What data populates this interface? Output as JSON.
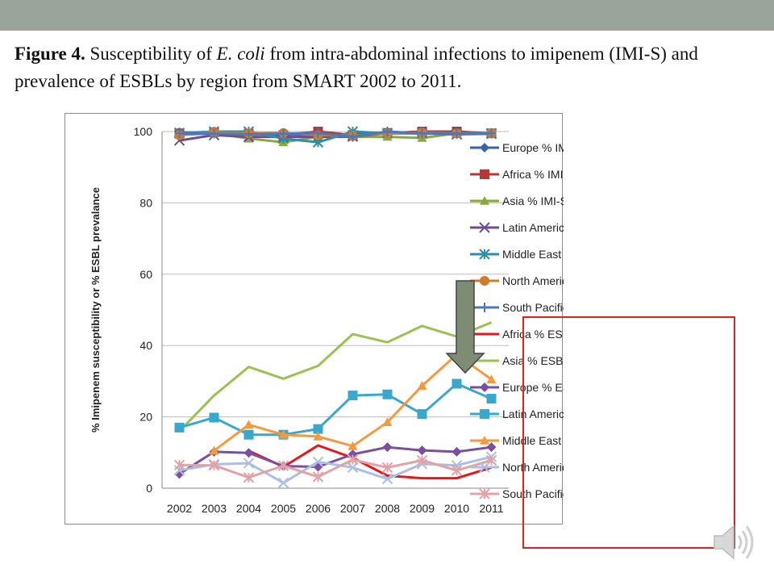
{
  "caption": {
    "label": "Figure 4.",
    "text_before_italic": " Susceptibility of ",
    "italic": "E. coli",
    "text_after_italic": " from intra-abdominal infections to imipenem (IMI-S) and prevalence of ESBLs by region from SMART 2002 to 2011."
  },
  "colors": {
    "top_band": "#9aa49a",
    "highlight_box": "#e02020",
    "arrow_fill": "#7d8c72"
  },
  "icons": {
    "arrow": "down-arrow-icon",
    "speaker": "speaker-icon"
  },
  "chart_data": {
    "type": "line",
    "x": [
      2002,
      2003,
      2004,
      2005,
      2006,
      2007,
      2008,
      2009,
      2010,
      2011
    ],
    "ylim": [
      0,
      100
    ],
    "yticks": [
      0,
      20,
      40,
      60,
      80,
      100
    ],
    "ylabel": "% Imipenem susceptibility or % ESBL prevalance",
    "xlabel": "",
    "grid": "horizontal",
    "legend_position": "right",
    "series": [
      {
        "name": "Europe % IMI-S",
        "color": "#3a62a8",
        "marker": "diamond",
        "values": [
          99.8,
          99.6,
          99.2,
          99.5,
          98.6,
          99.3,
          99.5,
          99.6,
          99.3,
          99.4
        ]
      },
      {
        "name": "Africa % IMI-S",
        "color": "#b03a36",
        "marker": "square",
        "values": [
          99.5,
          99.8,
          99.4,
          99.0,
          100,
          99.0,
          99.6,
          100,
          100,
          99.5
        ]
      },
      {
        "name": "Asia % IMI-S",
        "color": "#88aa3c",
        "marker": "triangle",
        "values": [
          99.0,
          99.5,
          98.0,
          97.0,
          98.5,
          98.5,
          98.5,
          98.2,
          99.5,
          99.3
        ]
      },
      {
        "name": "Latin America % IMI-S",
        "color": "#6e4c94",
        "marker": "x",
        "values": [
          97.5,
          99.0,
          98.5,
          98.5,
          98.5,
          98.6,
          99.5,
          99.5,
          99.2,
          99.4
        ]
      },
      {
        "name": "Middle East % IMI-S",
        "color": "#2c8fa8",
        "marker": "asterisk",
        "values": [
          99.6,
          100,
          100,
          98.0,
          97.0,
          100,
          99.5,
          99.5,
          99.3,
          99.5
        ]
      },
      {
        "name": "North America % IMI-S",
        "color": "#d07a2c",
        "marker": "circle",
        "values": [
          99.0,
          99.8,
          99.5,
          99.6,
          99.0,
          98.8,
          99.5,
          99.7,
          99.5,
          99.6
        ]
      },
      {
        "name": "South Pacific % IMI-S",
        "color": "#4a78c0",
        "marker": "plus",
        "values": [
          99.5,
          99.4,
          99.2,
          99.4,
          99.6,
          98.5,
          100,
          99.5,
          99.4,
          99.5
        ]
      },
      {
        "name": "Africa % ESBL",
        "color": "#e8161c",
        "marker": "none",
        "values": [
          null,
          null,
          10.5,
          6.0,
          12.0,
          8.5,
          3.5,
          2.8,
          2.8,
          5.8
        ]
      },
      {
        "name": "Asia % ESBL",
        "color": "#9bc251",
        "marker": "none",
        "values": [
          16.0,
          26.0,
          34.0,
          30.7,
          34.3,
          43.2,
          40.9,
          45.5,
          42.5,
          46.5
        ]
      },
      {
        "name": "Europe % ESBL",
        "color": "#7a4fa0",
        "marker": "diamond",
        "values": [
          4.0,
          10.2,
          9.9,
          6.2,
          6.0,
          9.5,
          11.5,
          10.6,
          10.2,
          11.5
        ]
      },
      {
        "name": "Latin America % ESBL",
        "color": "#3aa7cc",
        "marker": "square",
        "values": [
          17.0,
          19.8,
          15.0,
          15.0,
          16.6,
          26.0,
          26.3,
          20.8,
          29.3,
          25.1
        ]
      },
      {
        "name": "Middle East % ESBL",
        "color": "#f39a3e",
        "marker": "triangle",
        "values": [
          null,
          10.5,
          17.8,
          15.0,
          14.5,
          11.8,
          18.5,
          28.7,
          37.5,
          30.5
        ]
      },
      {
        "name": "North America % ESBL",
        "color": "#a9bfe3",
        "marker": "x",
        "values": [
          5.0,
          6.7,
          7.0,
          1.5,
          7.4,
          5.8,
          2.6,
          6.8,
          6.4,
          8.8
        ]
      },
      {
        "name": "South Pacific % ESBL",
        "color": "#e3a3a6",
        "marker": "asterisk",
        "values": [
          6.5,
          6.4,
          3.0,
          6.3,
          3.2,
          8.0,
          5.8,
          7.8,
          5.0,
          7.8
        ]
      }
    ]
  }
}
